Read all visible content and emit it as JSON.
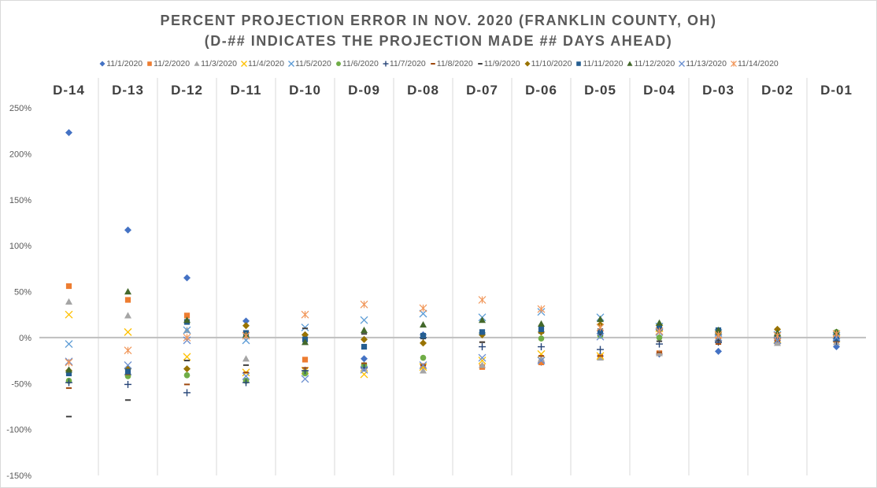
{
  "chart_data": {
    "type": "scatter",
    "title": "PERCENT PROJECTION ERROR IN NOV. 2020 (FRANKLIN COUNTY, OH)",
    "subtitle": "(D-## INDICATES THE PROJECTION MADE ## DAYS AHEAD)",
    "xlabel": "",
    "ylabel": "",
    "legend_position": "top",
    "categories": [
      "D-14",
      "D-13",
      "D-12",
      "D-11",
      "D-10",
      "D-09",
      "D-08",
      "D-07",
      "D-06",
      "D-05",
      "D-04",
      "D-03",
      "D-02",
      "D-01"
    ],
    "y_ticks": [
      "250%",
      "200%",
      "150%",
      "100%",
      "50%",
      "0%",
      "-50%",
      "-100%",
      "-150%"
    ],
    "ylim": [
      -150,
      250
    ],
    "grid_vertical_separators": true,
    "series": [
      {
        "name": "11/1/2020",
        "marker": "diamond",
        "color": "#4472C4",
        "values": [
          223,
          117,
          65,
          18,
          3,
          -23,
          3,
          5,
          -27,
          -20,
          -18,
          -15,
          -3,
          -10
        ]
      },
      {
        "name": "11/2/2020",
        "marker": "square",
        "color": "#ED7D31",
        "values": [
          56,
          41,
          24,
          5,
          -24,
          -32,
          -31,
          -32,
          -27,
          -21,
          -17,
          -3,
          -5,
          -3
        ]
      },
      {
        "name": "11/3/2020",
        "marker": "triangle",
        "color": "#A5A5A5",
        "values": [
          39,
          24,
          8,
          -23,
          -35,
          -33,
          -36,
          -30,
          -23,
          -22,
          -17,
          -3,
          -6,
          -5
        ]
      },
      {
        "name": "11/4/2020",
        "marker": "x",
        "color": "#FFC000",
        "values": [
          25,
          6,
          -21,
          -38,
          -36,
          -40,
          -32,
          -25,
          -18,
          -20,
          10,
          0,
          -2,
          -1
        ]
      },
      {
        "name": "11/5/2020",
        "marker": "x",
        "color": "#5B9BD5",
        "values": [
          -7,
          -37,
          8,
          -3,
          11,
          19,
          26,
          22,
          28,
          22,
          12,
          5,
          3,
          2
        ]
      },
      {
        "name": "11/6/2020",
        "marker": "circle",
        "color": "#70AD47",
        "values": [
          -47,
          -42,
          -41,
          -47,
          -39,
          -30,
          -22,
          5,
          -1,
          2,
          0,
          8,
          2,
          6
        ]
      },
      {
        "name": "11/7/2020",
        "marker": "plus",
        "color": "#264478",
        "values": [
          -49,
          -51,
          -60,
          -49,
          -36,
          -33,
          0,
          -10,
          -10,
          -13,
          -7,
          -5,
          -1,
          -4
        ]
      },
      {
        "name": "11/8/2020",
        "marker": "dash",
        "color": "#9E480E",
        "values": [
          -55,
          -40,
          -51,
          -38,
          -33,
          -28,
          -30,
          -5,
          -20,
          -20,
          -16,
          -7,
          -4,
          -4
        ]
      },
      {
        "name": "11/9/2020",
        "marker": "dash",
        "color": "#404040",
        "values": [
          -86,
          -68,
          -25,
          -30,
          10,
          4,
          -1,
          -5,
          5,
          3,
          -4,
          -3,
          0,
          -2
        ]
      },
      {
        "name": "11/10/2020",
        "marker": "diamond",
        "color": "#997300",
        "values": [
          -36,
          -34,
          -34,
          13,
          3,
          -2,
          -6,
          3,
          6,
          14,
          8,
          4,
          9,
          1
        ]
      },
      {
        "name": "11/11/2020",
        "marker": "square",
        "color": "#255E91",
        "values": [
          -39,
          -37,
          17,
          5,
          -2,
          -10,
          2,
          6,
          9,
          7,
          11,
          8,
          2,
          -1
        ]
      },
      {
        "name": "11/12/2020",
        "marker": "triangle",
        "color": "#43682B",
        "values": [
          -35,
          50,
          19,
          3,
          -5,
          8,
          14,
          19,
          15,
          20,
          16,
          8,
          5,
          6
        ]
      },
      {
        "name": "11/13/2020",
        "marker": "x",
        "color": "#698ED0",
        "values": [
          -26,
          -30,
          -3,
          -42,
          -45,
          -35,
          -30,
          -22,
          -25,
          1,
          6,
          0,
          -3,
          0
        ]
      },
      {
        "name": "11/14/2020",
        "marker": "asterisk",
        "color": "#F1975A",
        "values": [
          -27,
          -14,
          0,
          2,
          25,
          36,
          32,
          41,
          31,
          11,
          7,
          3,
          2,
          4
        ]
      }
    ]
  }
}
